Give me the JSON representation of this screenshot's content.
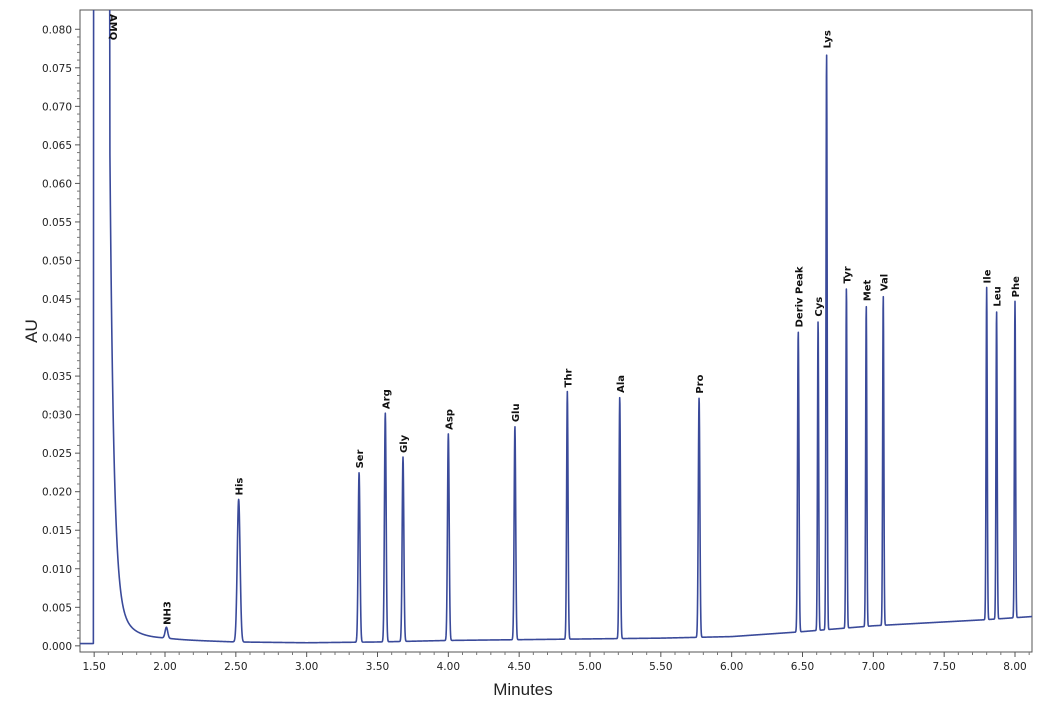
{
  "chart_data": {
    "type": "line",
    "xlabel": "Minutes",
    "ylabel": "AU",
    "xlim": [
      1.4,
      8.12
    ],
    "ylim": [
      -0.0008,
      0.0825
    ],
    "grid": false,
    "line_color": "#3a4a9a",
    "x_ticks": [
      "1.50",
      "2.00",
      "2.50",
      "3.00",
      "3.50",
      "4.00",
      "4.50",
      "5.00",
      "5.50",
      "6.00",
      "6.50",
      "7.00",
      "7.50",
      "8.00"
    ],
    "y_ticks": [
      "0.000",
      "0.005",
      "0.010",
      "0.015",
      "0.020",
      "0.025",
      "0:030",
      "0.035",
      "0.040",
      "0.045",
      "0.050",
      "0.055",
      "0.060",
      "0.065",
      "0.070",
      "0.075",
      "0.080"
    ],
    "baseline": [
      [
        1.4,
        0.0003
      ],
      [
        1.49,
        0.0003
      ],
      [
        2.0,
        0.0008
      ],
      [
        2.5,
        0.0005
      ],
      [
        3.0,
        0.0004
      ],
      [
        3.5,
        0.0005
      ],
      [
        4.0,
        0.0007
      ],
      [
        4.5,
        0.0008
      ],
      [
        5.0,
        0.0009
      ],
      [
        5.5,
        0.001
      ],
      [
        6.0,
        0.0012
      ],
      [
        6.47,
        0.0018
      ],
      [
        7.0,
        0.0026
      ],
      [
        7.5,
        0.0031
      ],
      [
        7.8,
        0.0034
      ],
      [
        8.12,
        0.0038
      ]
    ],
    "solvent_front": {
      "start": 1.495,
      "end": 1.61,
      "decay": 0.027
    },
    "peaks": [
      {
        "label": "AMQ",
        "x": 1.555,
        "y": 0.085,
        "width": 0.05
      },
      {
        "label": "NH3",
        "x": 2.01,
        "y": 0.0022,
        "width": 0.02
      },
      {
        "label": "His",
        "x": 2.52,
        "y": 0.019,
        "width": 0.022
      },
      {
        "label": "Ser",
        "x": 3.37,
        "y": 0.0225,
        "width": 0.014
      },
      {
        "label": "Arg",
        "x": 3.555,
        "y": 0.0302,
        "width": 0.013
      },
      {
        "label": "Gly",
        "x": 3.68,
        "y": 0.0245,
        "width": 0.013
      },
      {
        "label": "Asp",
        "x": 4.0,
        "y": 0.0275,
        "width": 0.013
      },
      {
        "label": "Glu",
        "x": 4.47,
        "y": 0.0285,
        "width": 0.012
      },
      {
        "label": "Thr",
        "x": 4.84,
        "y": 0.033,
        "width": 0.011
      },
      {
        "label": "Ala",
        "x": 5.21,
        "y": 0.0323,
        "width": 0.011
      },
      {
        "label": "Pro",
        "x": 5.77,
        "y": 0.0322,
        "width": 0.012
      },
      {
        "label": "Deriv  Peak",
        "x": 6.47,
        "y": 0.0408,
        "width": 0.011
      },
      {
        "label": "Cys",
        "x": 6.61,
        "y": 0.0422,
        "width": 0.009
      },
      {
        "label": "Lys",
        "x": 6.67,
        "y": 0.077,
        "width": 0.009
      },
      {
        "label": "Tyr",
        "x": 6.81,
        "y": 0.0465,
        "width": 0.009
      },
      {
        "label": "Met",
        "x": 6.95,
        "y": 0.0442,
        "width": 0.009
      },
      {
        "label": "Val",
        "x": 7.07,
        "y": 0.0455,
        "width": 0.009
      },
      {
        "label": "Ile",
        "x": 7.8,
        "y": 0.0465,
        "width": 0.009
      },
      {
        "label": "Leu",
        "x": 7.87,
        "y": 0.0435,
        "width": 0.009
      },
      {
        "label": "Phe",
        "x": 8.0,
        "y": 0.0447,
        "width": 0.009
      }
    ]
  }
}
